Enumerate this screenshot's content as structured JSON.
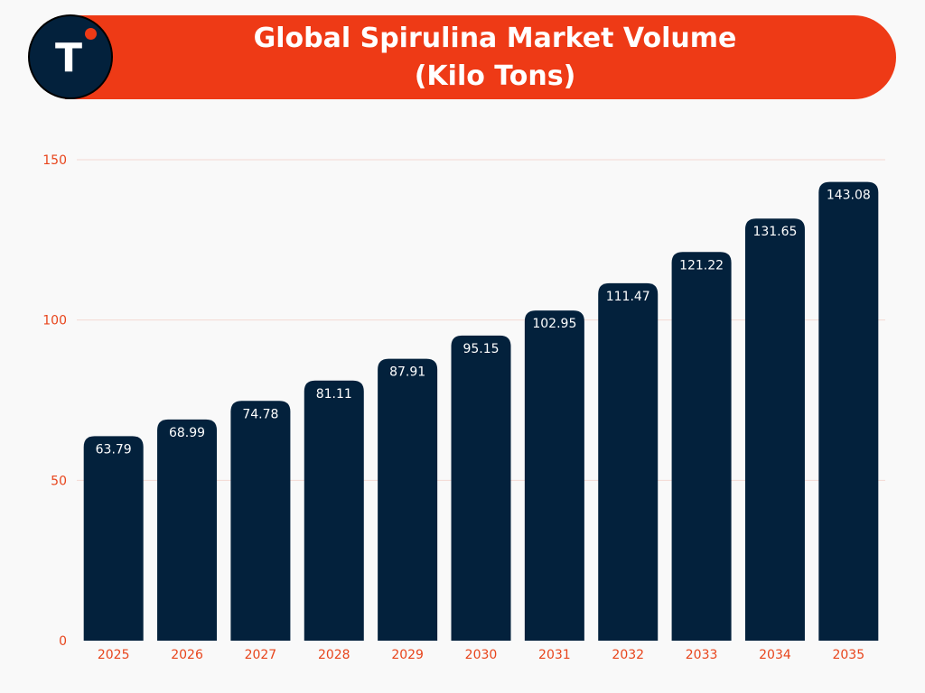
{
  "header": {
    "title_line1": "Global Spirulina Market Volume",
    "title_line2": "(Kilo Tons)",
    "logo_letter": "T"
  },
  "colors": {
    "accent": "#ee3a16",
    "bar": "#03213c",
    "tick_label": "#e8451c",
    "gridline": "#f3d9d3",
    "background": "#f9f9f9"
  },
  "chart_data": {
    "type": "bar",
    "title": "Global Spirulina Market Volume (Kilo Tons)",
    "xlabel": "",
    "ylabel": "",
    "categories": [
      "2025",
      "2026",
      "2027",
      "2028",
      "2029",
      "2030",
      "2031",
      "2032",
      "2033",
      "2034",
      "2035"
    ],
    "values": [
      63.79,
      68.99,
      74.78,
      81.11,
      87.91,
      95.15,
      102.95,
      111.47,
      121.22,
      131.65,
      143.08
    ],
    "value_labels": [
      "63.79",
      "68.99",
      "74.78",
      "81.11",
      "87.91",
      "95.15",
      "102.95",
      "111.47",
      "121.22",
      "131.65",
      "143.08"
    ],
    "ylim": [
      0,
      150
    ],
    "yticks": [
      0,
      50,
      100,
      150
    ],
    "grid": true,
    "legend": "none"
  }
}
